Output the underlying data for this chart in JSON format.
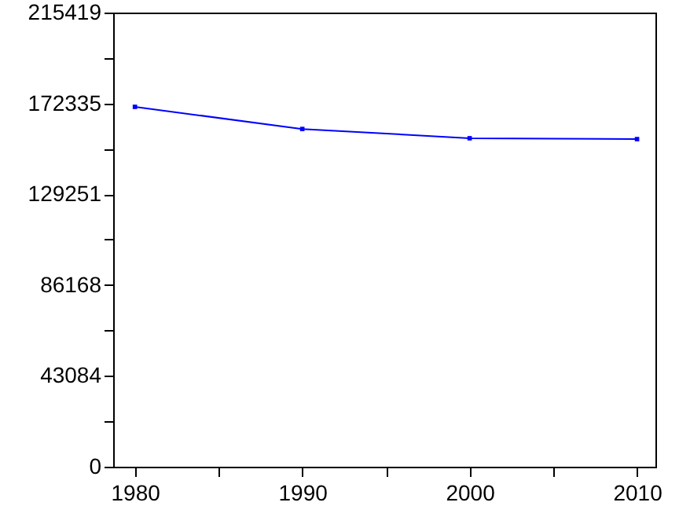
{
  "chart_data": {
    "type": "line",
    "x": [
      1980,
      1990,
      2000,
      2010
    ],
    "series": [
      {
        "color": "#0000ff",
        "values": [
          170700,
          160200,
          155800,
          155400
        ]
      }
    ],
    "xlim": [
      1978.7,
      2011.1
    ],
    "xticks": [
      1980,
      {
        "value": 1985,
        "label": null
      },
      1990,
      {
        "value": 1995,
        "label": null
      },
      2000,
      {
        "value": 2005,
        "label": null
      },
      2010
    ],
    "ylim": [
      0,
      215419
    ],
    "yticks": [
      0,
      {
        "value": 21542,
        "label": null
      },
      43084,
      {
        "value": 64626,
        "label": null
      },
      86168,
      {
        "value": 107710,
        "label": null
      },
      129251,
      {
        "value": 150793,
        "label": null
      },
      172335,
      {
        "value": 193877,
        "label": null
      },
      215419
    ],
    "grid": false,
    "legend": false,
    "marker": "square",
    "line_style": "solid"
  }
}
